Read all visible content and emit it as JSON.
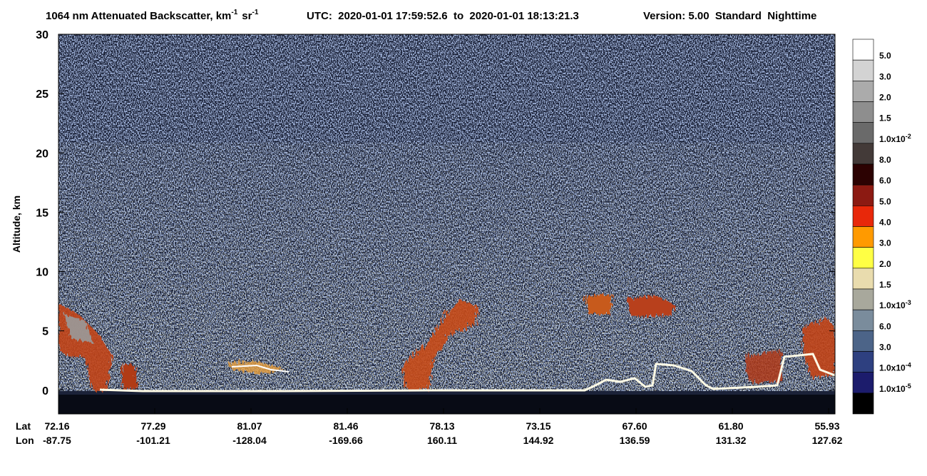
{
  "chart_data": {
    "type": "heatmap",
    "title_parts": [
      {
        "text": "1064 nm Attenuated Backscatter, km"
      },
      {
        "sup": "-1"
      },
      {
        "text": "sr"
      },
      {
        "sup": "-1"
      }
    ],
    "subtitle": "UTC:  2020-01-01 17:59:52.6  to  2020-01-01 18:13:21.3",
    "version": "Version: 5.00  Standard  Nighttime",
    "ylabel": "Altitude, km",
    "ylim": [
      -2,
      30
    ],
    "yticks": [
      0,
      5,
      10,
      15,
      20,
      25,
      30
    ],
    "lat_label": "Lat",
    "lon_label": "Lon",
    "lat": [
      "72.16",
      "77.29",
      "81.07",
      "81.46",
      "78.13",
      "73.15",
      "67.60",
      "61.80",
      "55.93"
    ],
    "lon": [
      "-87.75",
      "-101.21",
      "-128.04",
      "-169.66",
      "160.11",
      "144.92",
      "136.59",
      "131.32",
      "127.62"
    ],
    "colorbar": {
      "colors": [
        "#ffffff",
        "#d3d3d3",
        "#ababab",
        "#8e8e8e",
        "#6a6a6a",
        "#433a38",
        "#2c0202",
        "#8c1a12",
        "#e8280a",
        "#ff9a00",
        "#ffff44",
        "#e9dcae",
        "#a8a89c",
        "#7a8c9c",
        "#4c6488",
        "#2e4080",
        "#1c1c6c",
        "#000000"
      ],
      "labels": [
        {
          "text": "5.0"
        },
        {
          "text": "3.0"
        },
        {
          "text": "2.0"
        },
        {
          "text": "1.5"
        },
        {
          "text": "1.0x10",
          "sup": "-2"
        },
        {
          "text": "8.0"
        },
        {
          "text": "6.0"
        },
        {
          "text": "5.0"
        },
        {
          "text": "4.0"
        },
        {
          "text": "3.0"
        },
        {
          "text": "2.0"
        },
        {
          "text": "1.5"
        },
        {
          "text": "1.0x10",
          "sup": "-3"
        },
        {
          "text": "6.0"
        },
        {
          "text": "3.0"
        },
        {
          "text": "1.0x10",
          "sup": "-4"
        },
        {
          "text": "1.0x10",
          "sup": "-5"
        }
      ]
    }
  }
}
